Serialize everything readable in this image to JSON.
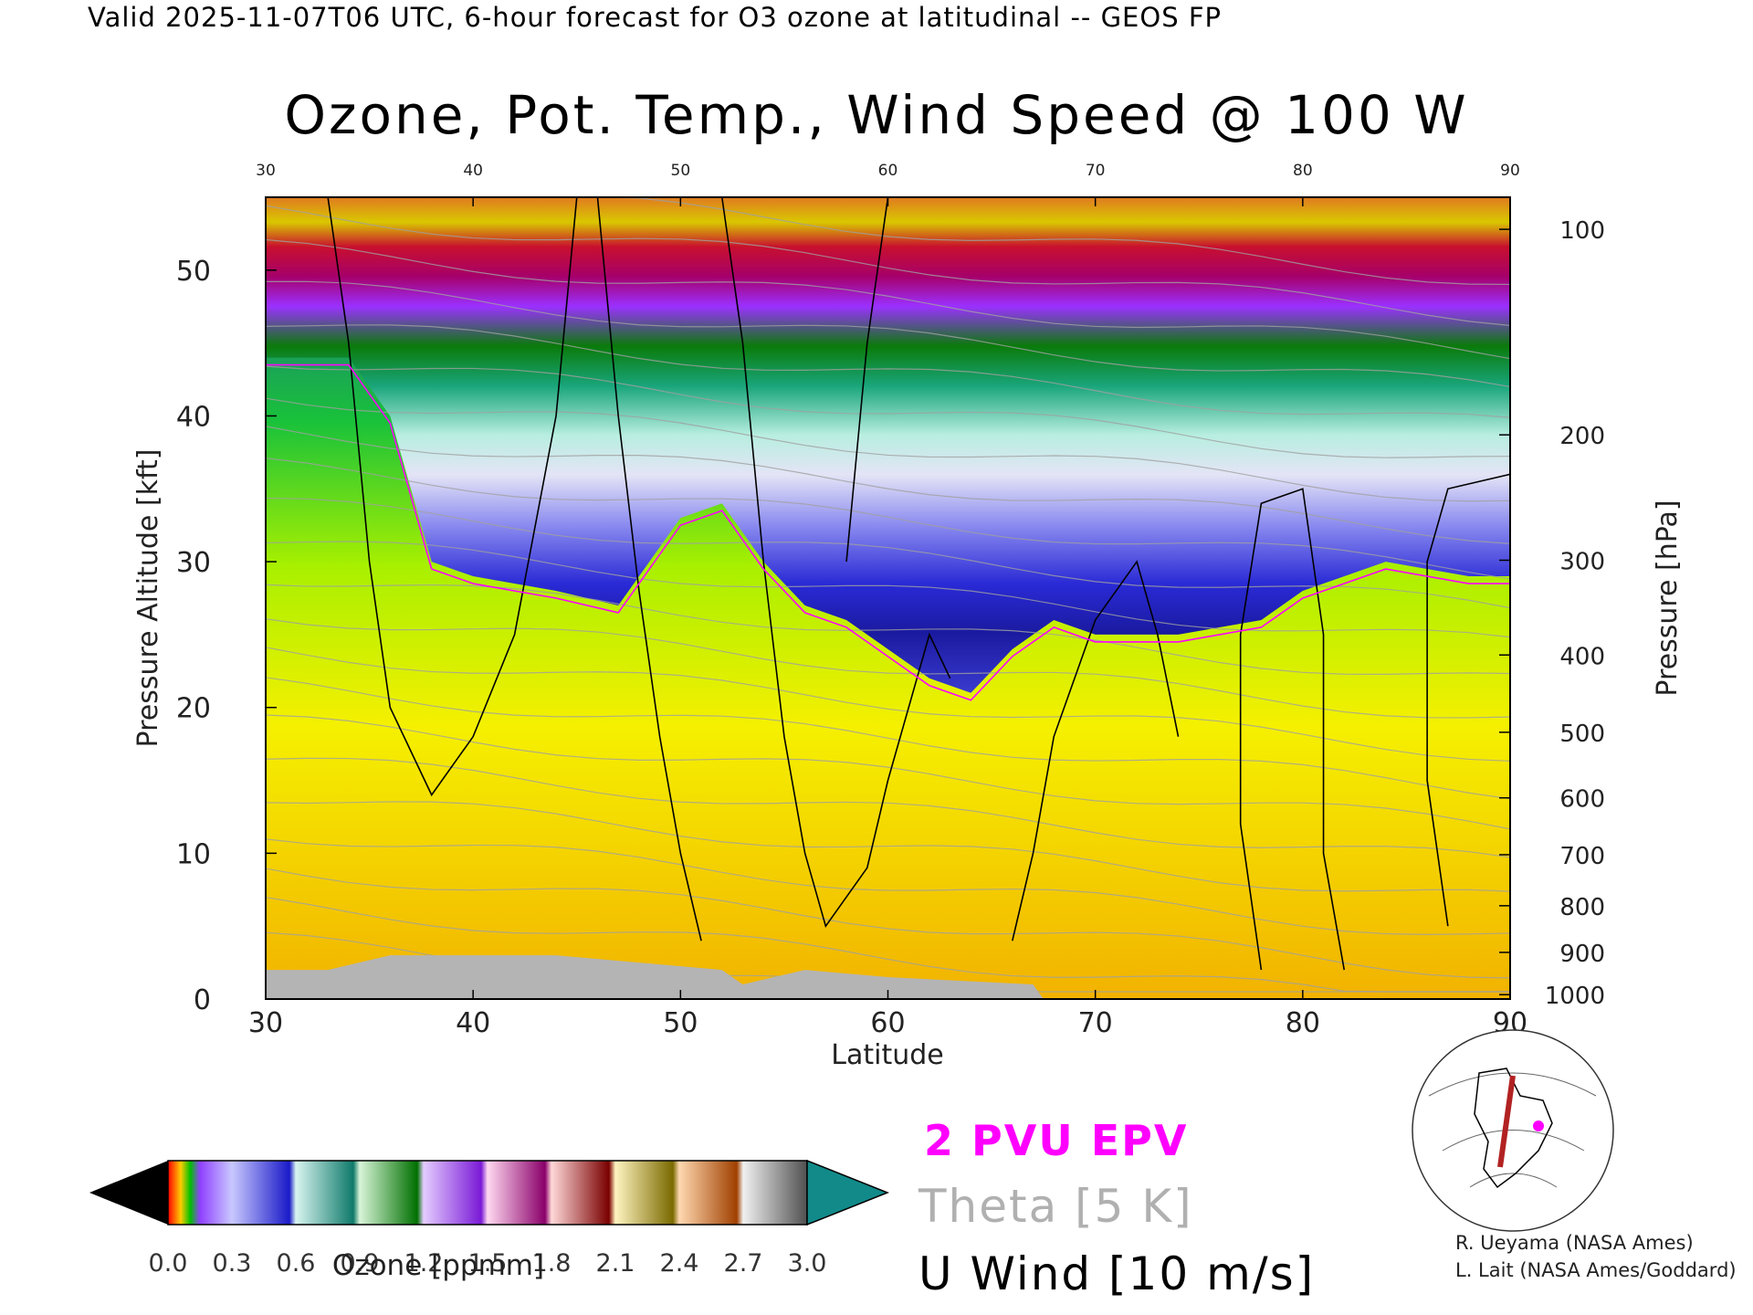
{
  "header": {
    "text": "Valid 2025-11-07T06 UTC, 6-hour forecast for O3 ozone at latitudinal -- GEOS FP"
  },
  "chart_data": {
    "type": "heatmap",
    "title": "Ozone, Pot. Temp., Wind Speed @ 100 W",
    "xlabel": "Latitude",
    "ylabel_left": "Pressure Altitude [kft]",
    "ylabel_right": "Pressure [hPa]",
    "xlim": [
      30,
      90
    ],
    "ylim": [
      0,
      55
    ],
    "x_ticks": [
      "30",
      "40",
      "50",
      "60",
      "70",
      "80",
      "90"
    ],
    "x_ticks_top": [
      "30",
      "40",
      "50",
      "60",
      "70",
      "80",
      "90"
    ],
    "y_ticks_left": [
      "0",
      "10",
      "20",
      "30",
      "40",
      "50"
    ],
    "y_ticks_right": [
      {
        "label": "100",
        "alt": 52.8
      },
      {
        "label": "200",
        "alt": 38.7
      },
      {
        "label": "300",
        "alt": 30.1
      },
      {
        "label": "400",
        "alt": 23.6
      },
      {
        "label": "500",
        "alt": 18.3
      },
      {
        "label": "600",
        "alt": 13.8
      },
      {
        "label": "700",
        "alt": 9.9
      },
      {
        "label": "800",
        "alt": 6.4
      },
      {
        "label": "900",
        "alt": 3.2
      },
      {
        "label": "1000",
        "alt": 0.3
      }
    ],
    "tropopause_kft": [
      [
        30,
        44
      ],
      [
        34,
        44
      ],
      [
        36,
        40
      ],
      [
        38,
        30
      ],
      [
        40,
        29
      ],
      [
        44,
        28
      ],
      [
        47,
        27
      ],
      [
        50,
        33
      ],
      [
        52,
        34
      ],
      [
        54,
        30
      ],
      [
        56,
        27
      ],
      [
        58,
        26
      ],
      [
        60,
        24
      ],
      [
        62,
        22
      ],
      [
        64,
        21
      ],
      [
        66,
        24
      ],
      [
        68,
        26
      ],
      [
        70,
        25
      ],
      [
        74,
        25
      ],
      [
        78,
        26
      ],
      [
        80,
        28
      ],
      [
        84,
        30
      ],
      [
        88,
        29
      ],
      [
        90,
        29
      ]
    ],
    "surface_gray_kft": [
      [
        30,
        2
      ],
      [
        33,
        2
      ],
      [
        36,
        3
      ],
      [
        44,
        3
      ],
      [
        48,
        2.5
      ],
      [
        52,
        2
      ],
      [
        53,
        1
      ],
      [
        56,
        2
      ],
      [
        60,
        1.5
      ],
      [
        67,
        1
      ],
      [
        67.5,
        0
      ]
    ],
    "colorbar": {
      "ticks": [
        "0.0",
        "0.3",
        "0.6",
        "0.9",
        "1.2",
        "1.5",
        "1.8",
        "2.1",
        "2.4",
        "2.7",
        "3.0"
      ],
      "label": "Ozone [ppmm]"
    },
    "legend": {
      "epv": "2 PVU EPV",
      "theta": "Theta [5 K]",
      "wind": "U Wind [10 m/s]"
    },
    "colors": {
      "epv": "#ff00ff",
      "theta": "#a0a0a0",
      "wind": "#000000",
      "surface": "#b4b4b4"
    }
  },
  "credits": {
    "line1": "R. Ueyama (NASA Ames)",
    "line2": "L. Lait (NASA Ames/Goddard)"
  }
}
